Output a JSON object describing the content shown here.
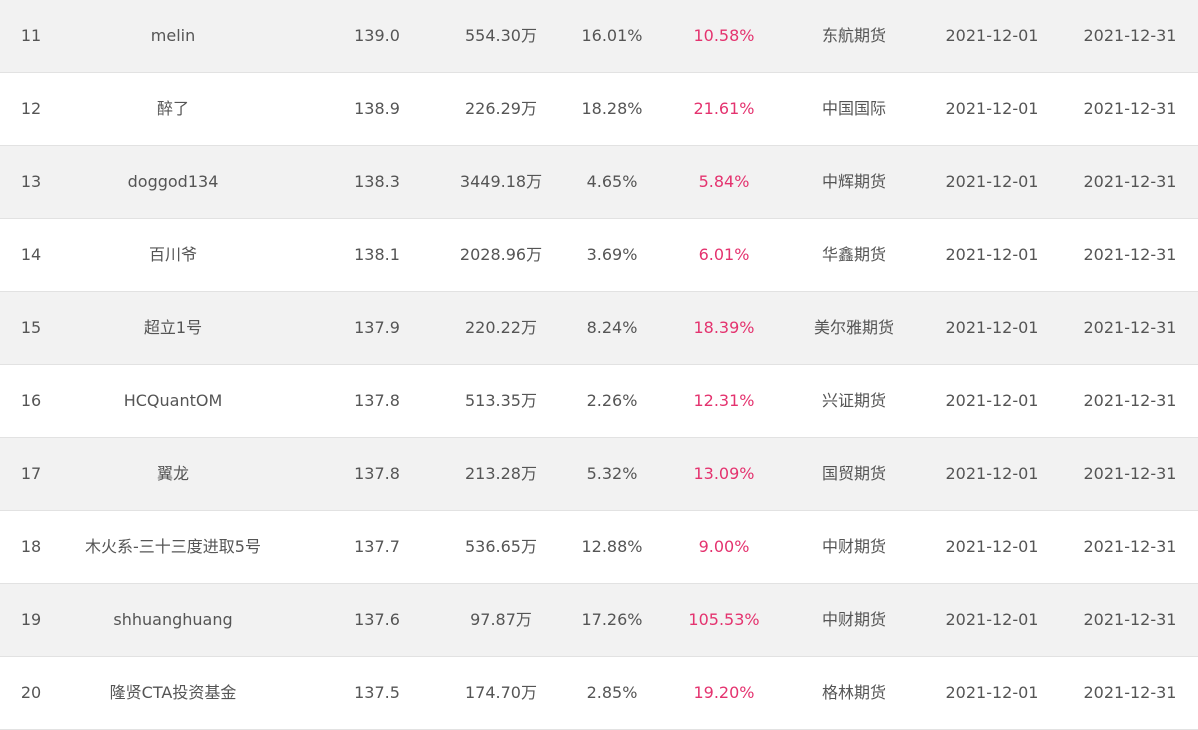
{
  "rows": [
    {
      "rank": "11",
      "name": "melin",
      "score": "139.0",
      "scale": "554.30万",
      "drawdown": "16.01%",
      "return": "10.58%",
      "broker": "东航期货",
      "start": "2021-12-01",
      "end": "2021-12-31"
    },
    {
      "rank": "12",
      "name": "醉了",
      "score": "138.9",
      "scale": "226.29万",
      "drawdown": "18.28%",
      "return": "21.61%",
      "broker": "中国国际",
      "start": "2021-12-01",
      "end": "2021-12-31"
    },
    {
      "rank": "13",
      "name": "doggod134",
      "score": "138.3",
      "scale": "3449.18万",
      "drawdown": "4.65%",
      "return": "5.84%",
      "broker": "中辉期货",
      "start": "2021-12-01",
      "end": "2021-12-31"
    },
    {
      "rank": "14",
      "name": "百川爷",
      "score": "138.1",
      "scale": "2028.96万",
      "drawdown": "3.69%",
      "return": "6.01%",
      "broker": "华鑫期货",
      "start": "2021-12-01",
      "end": "2021-12-31"
    },
    {
      "rank": "15",
      "name": "超立1号",
      "score": "137.9",
      "scale": "220.22万",
      "drawdown": "8.24%",
      "return": "18.39%",
      "broker": "美尔雅期货",
      "start": "2021-12-01",
      "end": "2021-12-31"
    },
    {
      "rank": "16",
      "name": "HCQuantOM",
      "score": "137.8",
      "scale": "513.35万",
      "drawdown": "2.26%",
      "return": "12.31%",
      "broker": "兴证期货",
      "start": "2021-12-01",
      "end": "2021-12-31"
    },
    {
      "rank": "17",
      "name": "翼龙",
      "score": "137.8",
      "scale": "213.28万",
      "drawdown": "5.32%",
      "return": "13.09%",
      "broker": "国贸期货",
      "start": "2021-12-01",
      "end": "2021-12-31"
    },
    {
      "rank": "18",
      "name": "木火系-三十三度进取5号",
      "score": "137.7",
      "scale": "536.65万",
      "drawdown": "12.88%",
      "return": "9.00%",
      "broker": "中财期货",
      "start": "2021-12-01",
      "end": "2021-12-31"
    },
    {
      "rank": "19",
      "name": "shhuanghuang",
      "score": "137.6",
      "scale": "97.87万",
      "drawdown": "17.26%",
      "return": "105.53%",
      "broker": "中财期货",
      "start": "2021-12-01",
      "end": "2021-12-31"
    },
    {
      "rank": "20",
      "name": "隆贤CTA投资基金",
      "score": "137.5",
      "scale": "174.70万",
      "drawdown": "2.85%",
      "return": "19.20%",
      "broker": "格林期货",
      "start": "2021-12-01",
      "end": "2021-12-31"
    }
  ],
  "colors": {
    "text": "#555555",
    "return_highlight": "#e4336f",
    "row_alt_bg": "#f2f2f2",
    "row_bg": "#ffffff",
    "divider": "#e2e2e2"
  }
}
